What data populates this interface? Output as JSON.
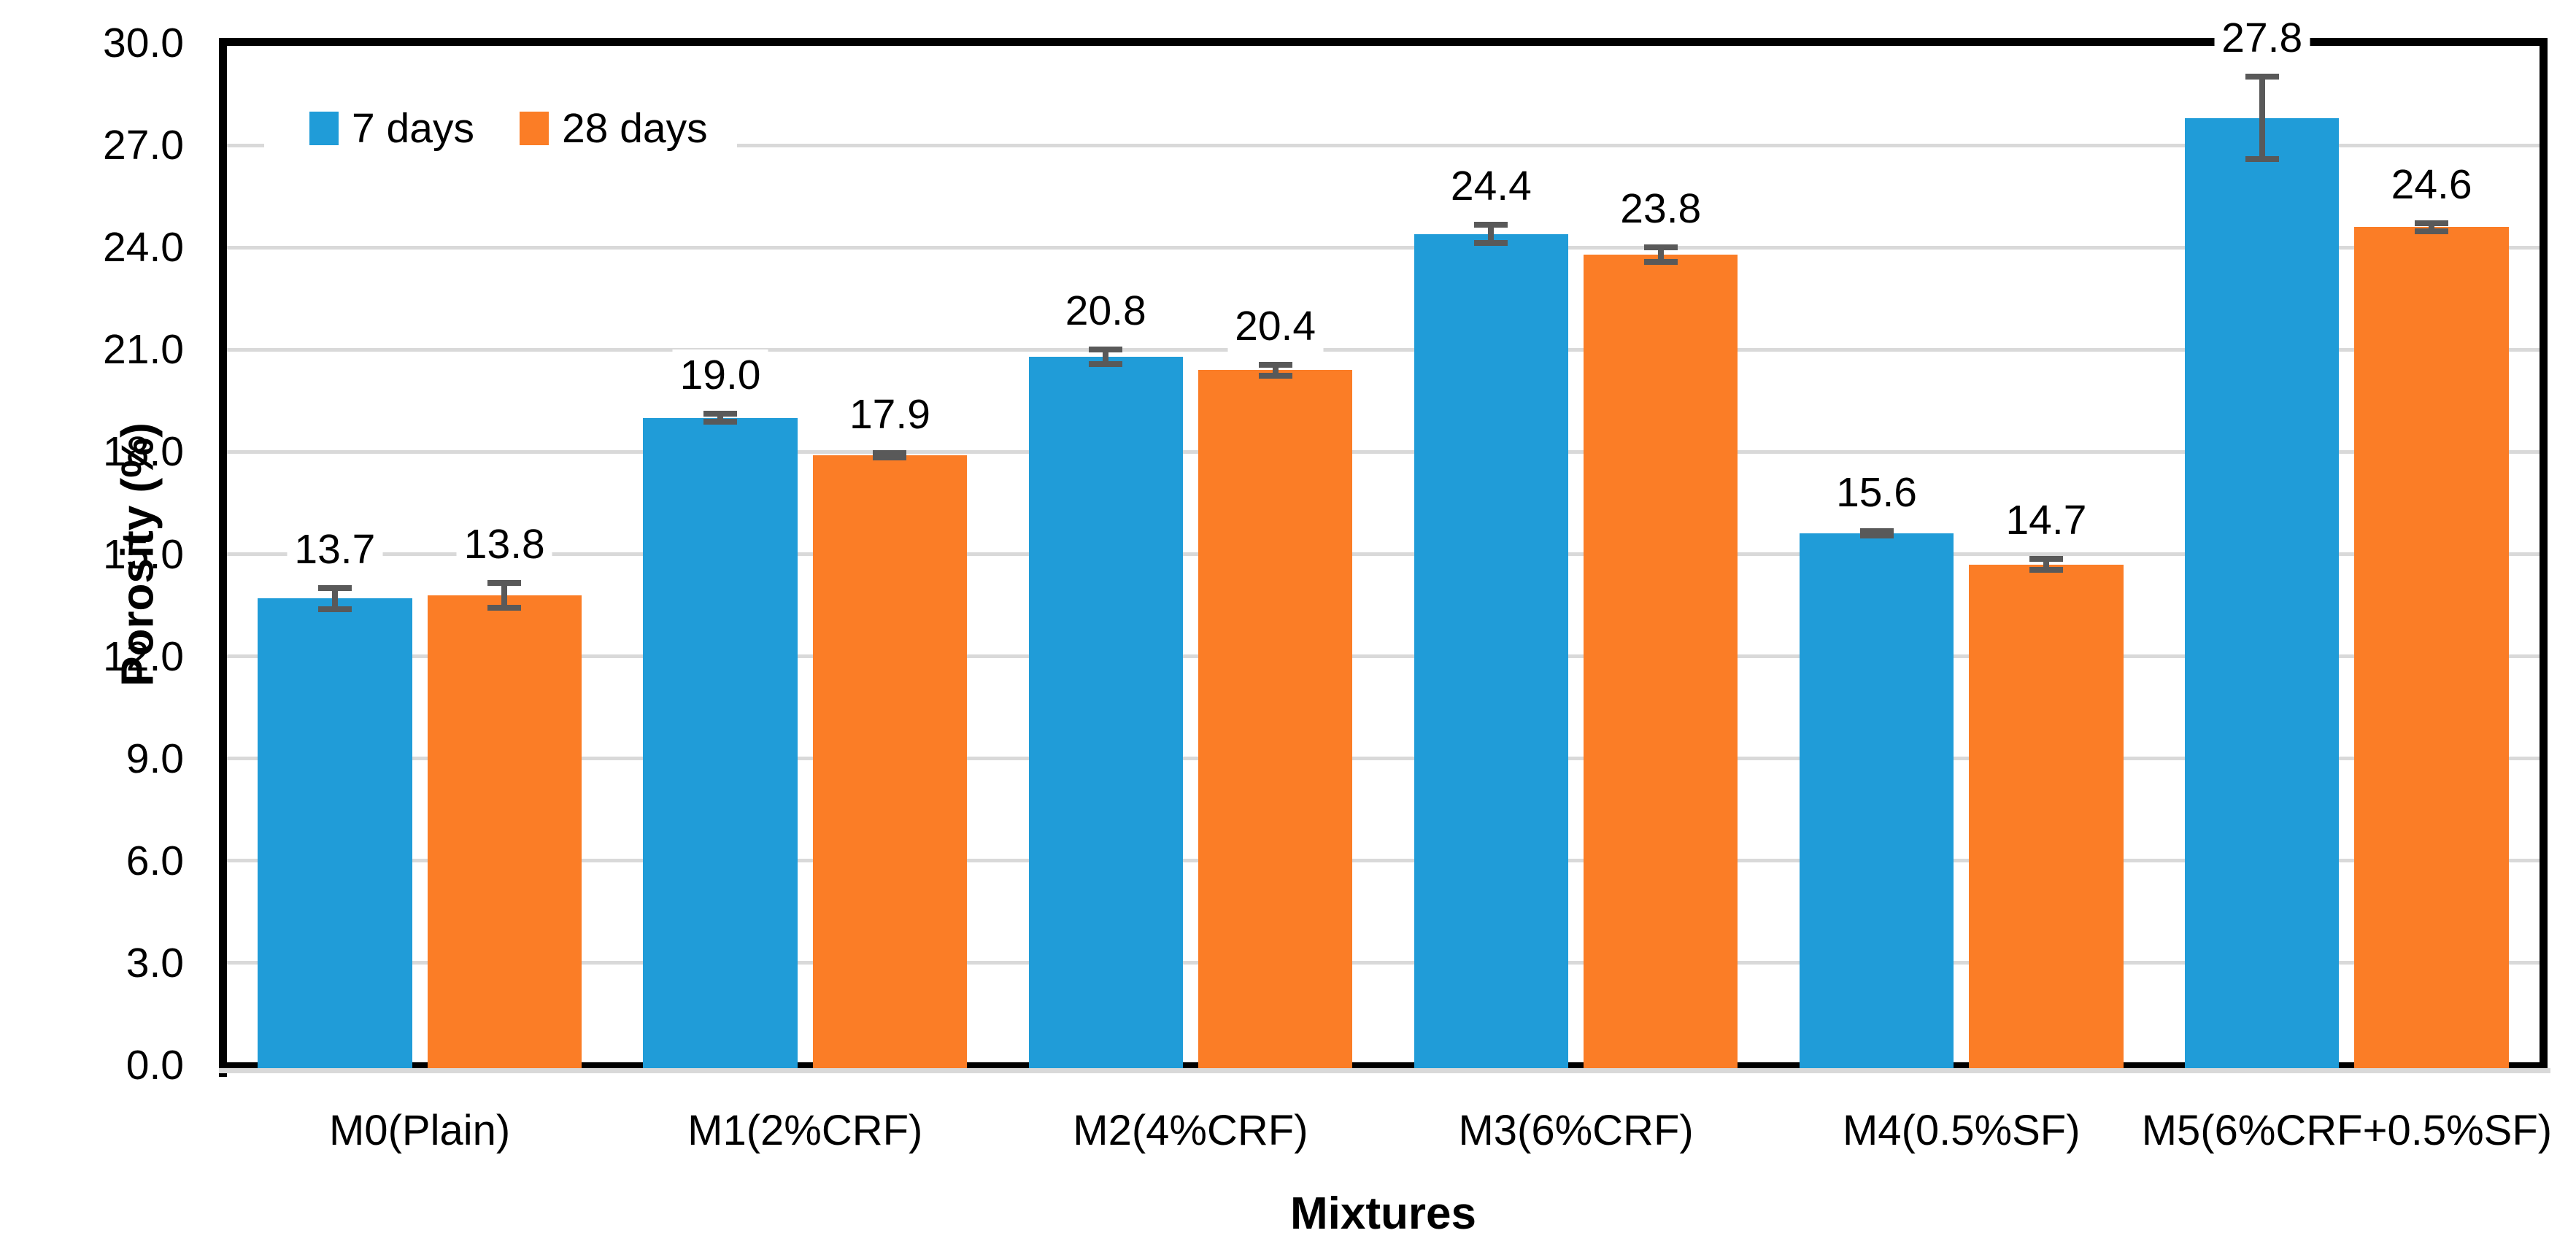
{
  "chart_data": {
    "type": "bar",
    "title": "",
    "categories": [
      "M0(Plain)",
      "M1(2%CRF)",
      "M2(4%CRF)",
      "M3(6%CRF)",
      "M4(0.5%SF)",
      "M5(6%CRF+0.5%SF)"
    ],
    "series": [
      {
        "name": "7 days",
        "color": "#209CD8",
        "values": [
          13.7,
          19.0,
          20.8,
          24.4,
          15.6,
          27.8
        ],
        "errors": [
          0.4,
          0.2,
          0.3,
          0.35,
          0.15,
          1.3
        ],
        "labels": [
          "13.7",
          "19.0",
          "20.8",
          "24.4",
          "15.6",
          "27.8"
        ]
      },
      {
        "name": "28 days",
        "color": "#FB7D26",
        "values": [
          13.8,
          17.9,
          20.4,
          23.8,
          14.7,
          24.6
        ],
        "errors": [
          0.45,
          0.15,
          0.25,
          0.3,
          0.25,
          0.2
        ],
        "labels": [
          "13.8",
          "17.9",
          "20.4",
          "23.8",
          "14.7",
          "24.6"
        ]
      }
    ],
    "xlabel": "Mixtures",
    "ylabel": "Porosity (%)",
    "ylim": [
      0,
      30
    ],
    "ytick_step": 3,
    "yticks": [
      "0.0",
      "3.0",
      "6.0",
      "9.0",
      "12.0",
      "15.0",
      "18.0",
      "21.0",
      "24.0",
      "27.0",
      "30.0"
    ],
    "grid": true,
    "legend_position": "inside-top-left",
    "gridline_color": "#D9D9D9",
    "error_bar_color": "#595959",
    "axis_color": "#000000",
    "plot_background": "#ffffff"
  }
}
